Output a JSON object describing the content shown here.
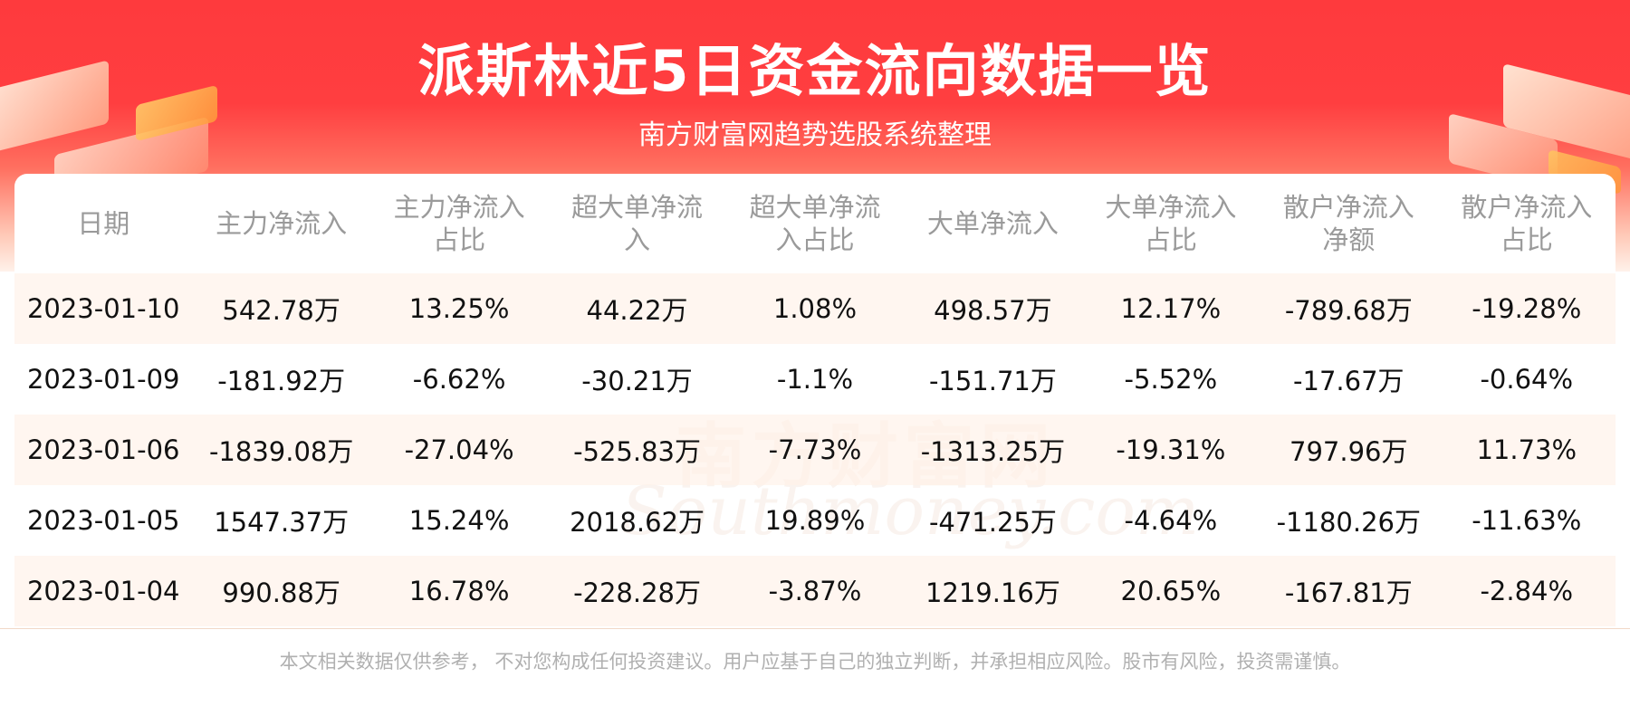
{
  "header": {
    "title": "派斯林近5日资金流向数据一览",
    "subtitle": "南方财富网趋势选股系统整理"
  },
  "watermark": {
    "cn": "南方财富网",
    "en": "Southmoney.com"
  },
  "table": {
    "headers": [
      [
        "日期"
      ],
      [
        "主力净流入"
      ],
      [
        "主力净流入",
        "占比"
      ],
      [
        "超大单净流",
        "入"
      ],
      [
        "超大单净流",
        "入占比"
      ],
      [
        "大单净流入"
      ],
      [
        "大单净流入",
        "占比"
      ],
      [
        "散户净流入",
        "净额"
      ],
      [
        "散户净流入",
        "占比"
      ]
    ],
    "rows": [
      [
        "2023-01-10",
        "542.78万",
        "13.25%",
        "44.22万",
        "1.08%",
        "498.57万",
        "12.17%",
        "-789.68万",
        "-19.28%"
      ],
      [
        "2023-01-09",
        "-181.92万",
        "-6.62%",
        "-30.21万",
        "-1.1%",
        "-151.71万",
        "-5.52%",
        "-17.67万",
        "-0.64%"
      ],
      [
        "2023-01-06",
        "-1839.08万",
        "-27.04%",
        "-525.83万",
        "-7.73%",
        "-1313.25万",
        "-19.31%",
        "797.96万",
        "11.73%"
      ],
      [
        "2023-01-05",
        "1547.37万",
        "15.24%",
        "2018.62万",
        "19.89%",
        "-471.25万",
        "-4.64%",
        "-1180.26万",
        "-11.63%"
      ],
      [
        "2023-01-04",
        "990.88万",
        "16.78%",
        "-228.28万",
        "-3.87%",
        "1219.16万",
        "20.65%",
        "-167.81万",
        "-2.84%"
      ]
    ]
  },
  "footer": {
    "disclaimer": "本文相关数据仅供参考， 不对您构成任何投资建议。用户应基于自己的独立判断，并承担相应风险。股市有风险，投资需谨慎。"
  }
}
